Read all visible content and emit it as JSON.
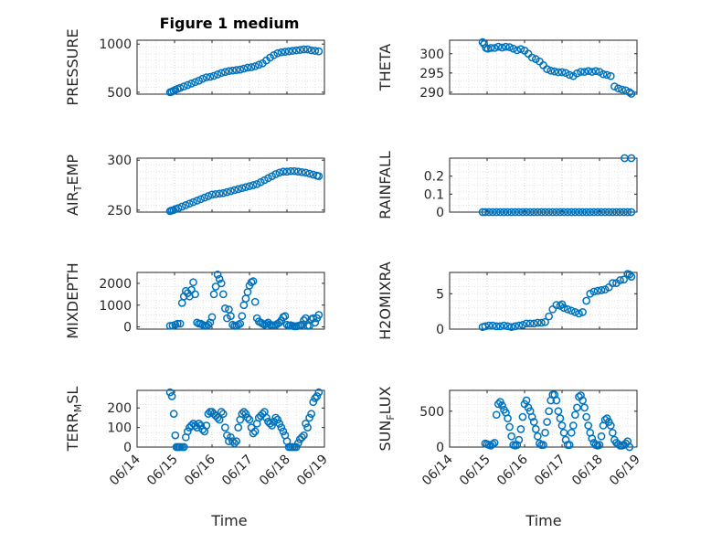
{
  "figure": {
    "title": "Figure 1 medium",
    "xlabel": "Time",
    "x_ticks": [
      "06/14",
      "06/15",
      "06/16",
      "06/17",
      "06/18",
      "06/19"
    ],
    "marker_color": "#0072BD",
    "grid": "dotted minor+major"
  },
  "chart_data": [
    {
      "type": "scatter",
      "id": "pressure",
      "ylabel": "PRESSURE",
      "ylabel_parts": [
        "PRESSURE"
      ],
      "ylim": [
        480,
        1040
      ],
      "yticks": [
        500,
        1000
      ],
      "x": [
        0.88,
        0.92,
        0.97,
        1.02,
        1.08,
        1.15,
        1.25,
        1.35,
        1.45,
        1.55,
        1.65,
        1.75,
        1.85,
        1.95,
        2.05,
        2.15,
        2.25,
        2.35,
        2.45,
        2.55,
        2.65,
        2.75,
        2.85,
        2.95,
        3.05,
        3.15,
        3.25,
        3.35,
        3.45,
        3.55,
        3.65,
        3.75,
        3.85,
        3.95,
        4.05,
        4.15,
        4.25,
        4.35,
        4.45,
        4.55,
        4.65,
        4.75,
        4.85
      ],
      "y": [
        500,
        505,
        515,
        525,
        535,
        545,
        560,
        575,
        590,
        605,
        620,
        640,
        655,
        660,
        670,
        685,
        700,
        710,
        720,
        725,
        730,
        735,
        745,
        755,
        760,
        770,
        785,
        800,
        830,
        860,
        885,
        905,
        915,
        920,
        925,
        930,
        935,
        940,
        945,
        945,
        935,
        930,
        925
      ]
    },
    {
      "type": "scatter",
      "id": "theta",
      "ylabel": "THETA",
      "ylabel_parts": [
        "THETA"
      ],
      "ylim": [
        289.5,
        303.5
      ],
      "yticks": [
        290,
        295,
        300
      ],
      "x": [
        0.88,
        0.92,
        0.97,
        1.02,
        1.1,
        1.2,
        1.3,
        1.4,
        1.5,
        1.6,
        1.7,
        1.8,
        1.9,
        2.0,
        2.1,
        2.2,
        2.3,
        2.4,
        2.5,
        2.6,
        2.7,
        2.8,
        2.9,
        3.0,
        3.1,
        3.2,
        3.3,
        3.4,
        3.5,
        3.6,
        3.7,
        3.8,
        3.9,
        4.0,
        4.1,
        4.2,
        4.3,
        4.4,
        4.5,
        4.6,
        4.7,
        4.8,
        4.85
      ],
      "y": [
        303,
        302.5,
        301.5,
        301.3,
        301.5,
        301.5,
        301.8,
        301.6,
        301.8,
        301.7,
        301.3,
        300.9,
        301.2,
        300.8,
        300,
        299,
        298.6,
        298,
        297,
        296,
        295.6,
        295.4,
        295.2,
        295.2,
        295,
        294.5,
        294.2,
        294.9,
        295.3,
        295.3,
        295.5,
        295.3,
        295.5,
        295.3,
        294.7,
        294.5,
        294.2,
        291.5,
        291,
        290.7,
        290.5,
        290,
        289.6
      ]
    },
    {
      "type": "scatter",
      "id": "air_temp",
      "ylabel": "AIR_TEMP",
      "ylabel_parts": [
        "AIR",
        "T",
        "EMP"
      ],
      "ylim": [
        248,
        302
      ],
      "yticks": [
        250,
        300
      ],
      "x": [
        0.88,
        0.92,
        0.97,
        1.02,
        1.1,
        1.2,
        1.3,
        1.4,
        1.5,
        1.6,
        1.7,
        1.8,
        1.9,
        2.0,
        2.1,
        2.2,
        2.3,
        2.4,
        2.5,
        2.6,
        2.7,
        2.8,
        2.9,
        3.0,
        3.1,
        3.2,
        3.3,
        3.4,
        3.5,
        3.6,
        3.7,
        3.8,
        3.9,
        4.0,
        4.1,
        4.2,
        4.3,
        4.4,
        4.5,
        4.6,
        4.7,
        4.8,
        4.85
      ],
      "y": [
        249,
        249.5,
        250,
        251,
        252,
        253.5,
        255,
        256.5,
        258,
        259.5,
        261,
        262.5,
        264,
        265.5,
        266,
        266.5,
        267,
        268,
        269,
        270,
        271,
        272,
        273,
        274,
        275,
        276,
        278,
        280,
        282,
        284,
        286,
        287.5,
        288.5,
        288.5,
        289,
        289,
        288.5,
        288,
        287.5,
        286.5,
        285.5,
        284.5,
        284
      ]
    },
    {
      "type": "scatter",
      "id": "rainfall",
      "ylabel": "RAINFALL",
      "ylabel_parts": [
        "RAINFALL"
      ],
      "ylim": [
        0,
        0.3
      ],
      "yticks": [
        0,
        0.1,
        0.2
      ],
      "x": [
        0.88,
        0.95,
        1.05,
        1.15,
        1.25,
        1.35,
        1.45,
        1.55,
        1.65,
        1.75,
        1.85,
        1.95,
        2.05,
        2.15,
        2.25,
        2.35,
        2.45,
        2.55,
        2.65,
        2.75,
        2.85,
        2.95,
        3.05,
        3.15,
        3.25,
        3.35,
        3.45,
        3.55,
        3.65,
        3.75,
        3.85,
        3.95,
        4.05,
        4.15,
        4.25,
        4.35,
        4.45,
        4.55,
        4.65,
        4.75,
        4.85,
        4.67,
        4.85
      ],
      "y": [
        0,
        0,
        0,
        0,
        0,
        0,
        0,
        0,
        0,
        0,
        0,
        0,
        0,
        0,
        0,
        0,
        0,
        0,
        0,
        0,
        0,
        0,
        0,
        0,
        0,
        0,
        0,
        0,
        0,
        0,
        0,
        0,
        0,
        0,
        0,
        0,
        0,
        0,
        0,
        0,
        0,
        0.3,
        0.3
      ]
    },
    {
      "type": "scatter",
      "id": "mixdepth",
      "ylabel": "MIXDEPTH",
      "ylabel_parts": [
        "MIXDEPTH"
      ],
      "ylim": [
        -100,
        2500
      ],
      "yticks": [
        0,
        1000,
        2000
      ],
      "x": [
        0.88,
        0.95,
        1.02,
        1.08,
        1.15,
        1.2,
        1.25,
        1.3,
        1.35,
        1.4,
        1.45,
        1.5,
        1.55,
        1.6,
        1.65,
        1.7,
        1.75,
        1.8,
        1.85,
        1.9,
        1.95,
        2.0,
        2.05,
        2.1,
        2.15,
        2.2,
        2.25,
        2.3,
        2.35,
        2.4,
        2.45,
        2.5,
        2.55,
        2.6,
        2.65,
        2.7,
        2.75,
        2.8,
        2.85,
        2.9,
        2.95,
        3.0,
        3.05,
        3.1,
        3.15,
        3.2,
        3.25,
        3.3,
        3.35,
        3.4,
        3.45,
        3.5,
        3.55,
        3.6,
        3.65,
        3.7,
        3.75,
        3.8,
        3.85,
        3.9,
        3.95,
        4.0,
        4.05,
        4.1,
        4.15,
        4.2,
        4.25,
        4.3,
        4.35,
        4.4,
        4.45,
        4.5,
        4.55,
        4.6,
        4.65,
        4.7,
        4.75,
        4.8,
        4.85
      ],
      "y": [
        50,
        60,
        100,
        150,
        150,
        1100,
        1400,
        1650,
        1550,
        1400,
        1700,
        2050,
        1500,
        200,
        150,
        150,
        100,
        50,
        50,
        100,
        200,
        450,
        1500,
        1850,
        2400,
        2200,
        2000,
        1500,
        850,
        400,
        800,
        500,
        100,
        50,
        50,
        100,
        150,
        500,
        1000,
        1300,
        1600,
        1900,
        2050,
        2100,
        1150,
        400,
        250,
        200,
        150,
        100,
        150,
        200,
        100,
        80,
        80,
        80,
        150,
        200,
        300,
        450,
        500,
        100,
        50,
        80,
        50,
        30,
        30,
        50,
        80,
        100,
        300,
        400,
        50,
        50,
        350,
        400,
        200,
        400,
        550
      ]
    },
    {
      "type": "scatter",
      "id": "h2omixra",
      "ylabel": "H2OMIXRA",
      "ylabel_parts": [
        "H2OMIXRA"
      ],
      "ylim": [
        0,
        8
      ],
      "yticks": [
        0,
        5
      ],
      "x": [
        0.88,
        0.95,
        1.05,
        1.15,
        1.25,
        1.35,
        1.45,
        1.55,
        1.65,
        1.75,
        1.85,
        1.95,
        2.05,
        2.15,
        2.25,
        2.35,
        2.45,
        2.55,
        2.65,
        2.75,
        2.85,
        2.95,
        3.0,
        3.05,
        3.15,
        3.25,
        3.35,
        3.45,
        3.55,
        3.65,
        3.75,
        3.85,
        3.95,
        4.05,
        4.15,
        4.25,
        4.35,
        4.45,
        4.55,
        4.65,
        4.75,
        4.8,
        4.85
      ],
      "y": [
        0.3,
        0.4,
        0.5,
        0.5,
        0.4,
        0.4,
        0.5,
        0.4,
        0.3,
        0.4,
        0.5,
        0.6,
        0.8,
        0.8,
        0.8,
        0.9,
        0.9,
        1.0,
        1.8,
        2.8,
        3.4,
        3.3,
        3.5,
        3.0,
        2.8,
        2.6,
        2.4,
        2.2,
        2.4,
        4.0,
        5.0,
        5.3,
        5.4,
        5.5,
        5.6,
        5.9,
        6.5,
        6.5,
        6.9,
        7.0,
        7.8,
        7.7,
        7.4
      ]
    },
    {
      "type": "scatter",
      "id": "terr_msl",
      "ylabel": "TERR_MSL",
      "ylabel_parts": [
        "TERR",
        "M",
        "SL"
      ],
      "ylim": [
        0,
        290
      ],
      "yticks": [
        0,
        100,
        200
      ],
      "x": [
        0.88,
        0.93,
        0.98,
        1.02,
        1.05,
        1.08,
        1.12,
        1.15,
        1.2,
        1.25,
        1.3,
        1.35,
        1.4,
        1.45,
        1.5,
        1.55,
        1.6,
        1.65,
        1.7,
        1.75,
        1.8,
        1.85,
        1.9,
        1.95,
        2.0,
        2.05,
        2.1,
        2.15,
        2.2,
        2.25,
        2.3,
        2.35,
        2.4,
        2.45,
        2.5,
        2.55,
        2.6,
        2.65,
        2.7,
        2.75,
        2.8,
        2.85,
        2.9,
        2.95,
        3.0,
        3.05,
        3.1,
        3.15,
        3.2,
        3.25,
        3.3,
        3.35,
        3.4,
        3.45,
        3.5,
        3.55,
        3.6,
        3.65,
        3.7,
        3.75,
        3.8,
        3.85,
        3.9,
        3.95,
        4.0,
        4.05,
        4.1,
        4.15,
        4.2,
        4.25,
        4.3,
        4.35,
        4.4,
        4.45,
        4.5,
        4.55,
        4.6,
        4.65,
        4.7,
        4.75,
        4.8,
        4.85
      ],
      "y": [
        280,
        260,
        170,
        60,
        0,
        0,
        0,
        0,
        0,
        0,
        50,
        80,
        100,
        110,
        120,
        110,
        100,
        120,
        110,
        90,
        80,
        110,
        170,
        180,
        180,
        170,
        160,
        150,
        140,
        180,
        170,
        100,
        60,
        30,
        50,
        30,
        20,
        30,
        100,
        140,
        170,
        180,
        170,
        150,
        140,
        100,
        70,
        80,
        120,
        150,
        160,
        170,
        180,
        150,
        130,
        120,
        110,
        130,
        150,
        140,
        120,
        100,
        80,
        60,
        30,
        0,
        0,
        0,
        0,
        0,
        20,
        40,
        50,
        60,
        120,
        100,
        150,
        170,
        230,
        250,
        260,
        280
      ]
    },
    {
      "type": "scatter",
      "id": "sun_flux",
      "ylabel": "SUN_FLUX",
      "ylabel_parts": [
        "SUN",
        "F",
        "LUX"
      ],
      "ylim": [
        0,
        790
      ],
      "yticks": [
        0,
        500
      ],
      "x": [
        0.95,
        1.0,
        1.05,
        1.1,
        1.15,
        1.2,
        1.25,
        1.3,
        1.35,
        1.4,
        1.45,
        1.5,
        1.55,
        1.6,
        1.65,
        1.7,
        1.75,
        1.8,
        1.85,
        1.9,
        1.95,
        2.0,
        2.05,
        2.1,
        2.15,
        2.2,
        2.25,
        2.3,
        2.35,
        2.4,
        2.45,
        2.5,
        2.55,
        2.6,
        2.65,
        2.7,
        2.75,
        2.8,
        2.85,
        2.9,
        2.95,
        3.0,
        3.05,
        3.1,
        3.15,
        3.2,
        3.25,
        3.3,
        3.35,
        3.4,
        3.45,
        3.5,
        3.55,
        3.6,
        3.65,
        3.7,
        3.75,
        3.8,
        3.85,
        3.9,
        3.95,
        4.0,
        4.05,
        4.1,
        4.15,
        4.2,
        4.25,
        4.3,
        4.35,
        4.4,
        4.45,
        4.5,
        4.55,
        4.6,
        4.65,
        4.7,
        4.75,
        4.8
      ],
      "y": [
        50,
        40,
        30,
        20,
        40,
        60,
        450,
        600,
        630,
        580,
        520,
        480,
        400,
        280,
        150,
        30,
        20,
        30,
        100,
        250,
        420,
        600,
        650,
        550,
        500,
        420,
        350,
        250,
        150,
        50,
        30,
        30,
        200,
        350,
        500,
        650,
        730,
        730,
        650,
        500,
        400,
        300,
        200,
        100,
        30,
        30,
        200,
        300,
        450,
        550,
        700,
        720,
        650,
        550,
        420,
        300,
        200,
        120,
        60,
        30,
        20,
        30,
        150,
        300,
        380,
        400,
        350,
        300,
        200,
        100,
        60,
        40,
        20,
        20,
        30,
        50,
        80,
        0
      ]
    }
  ]
}
